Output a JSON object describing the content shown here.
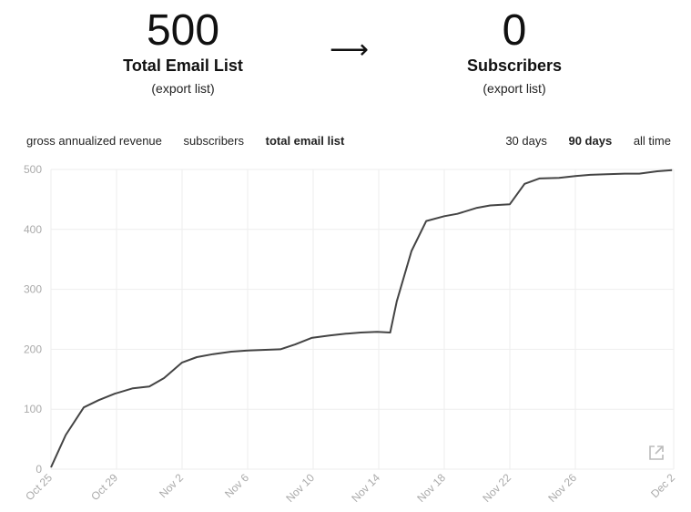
{
  "stats": {
    "left": {
      "value": "500",
      "label": "Total Email List",
      "link": "(export list)"
    },
    "arrow": "⟶",
    "right": {
      "value": "0",
      "label": "Subscribers",
      "link": "(export list)"
    }
  },
  "metric_tabs": [
    {
      "label": "gross annualized revenue",
      "active": false
    },
    {
      "label": "subscribers",
      "active": false
    },
    {
      "label": "total email list",
      "active": true
    }
  ],
  "range_tabs": [
    {
      "label": "30 days",
      "active": false
    },
    {
      "label": "90 days",
      "active": true
    },
    {
      "label": "all time",
      "active": false
    }
  ],
  "colors": {
    "line": "#444444",
    "grid": "#eeeeee",
    "axis_text": "#aaaaaa"
  },
  "icons": {
    "external": "external-link-icon"
  },
  "chart_data": {
    "type": "line",
    "title": "",
    "xlabel": "",
    "ylabel": "",
    "ylim": [
      0,
      500
    ],
    "yticks": [
      0,
      100,
      200,
      300,
      400,
      500
    ],
    "xticks": [
      "Oct 25",
      "Oct 29",
      "Nov 2",
      "Nov 6",
      "Nov 10",
      "Nov 14",
      "Nov 18",
      "Nov 22",
      "Nov 26",
      "Dec 2"
    ],
    "xtick_days": [
      0,
      4,
      8,
      12,
      16,
      20,
      24,
      28,
      32,
      38
    ],
    "grid": true,
    "series": [
      {
        "name": "",
        "x_days": [
          0,
          0.9,
          2,
          2.9,
          3.9,
          5,
          6,
          6.9,
          8,
          8.9,
          9.9,
          11,
          12,
          12.9,
          14,
          14.9,
          15.9,
          17,
          18,
          18.9,
          19.9,
          20.7,
          21.1,
          22,
          22.9,
          24,
          24.8,
          26,
          26.8,
          28,
          28.9,
          29.8,
          31,
          32,
          32.9,
          33.9,
          35,
          35.9,
          37,
          37.9
        ],
        "values": [
          3,
          57,
          103,
          115,
          126,
          135,
          138,
          152,
          178,
          187,
          192,
          196,
          198,
          199,
          200,
          208,
          219,
          223,
          226,
          228,
          229,
          228,
          280,
          364,
          414,
          422,
          426,
          436,
          440,
          442,
          476,
          485,
          486,
          489,
          491,
          492,
          493,
          493,
          497,
          499
        ]
      }
    ]
  }
}
